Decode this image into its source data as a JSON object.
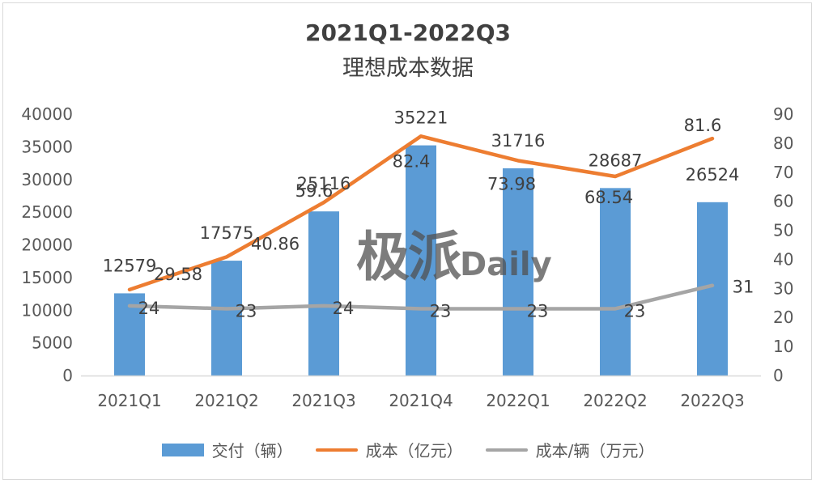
{
  "chart_data": {
    "type": "bar",
    "title": "2021Q1-2022Q3",
    "subtitle": "理想成本数据",
    "categories": [
      "2021Q1",
      "2021Q2",
      "2021Q3",
      "2021Q4",
      "2022Q1",
      "2022Q2",
      "2022Q3"
    ],
    "series": [
      {
        "name": "交付（辆）",
        "type": "bar",
        "axis": "left",
        "color": "#5b9bd5",
        "values": [
          12579,
          17575,
          25116,
          35221,
          31716,
          28687,
          26524
        ]
      },
      {
        "name": "成本（亿元）",
        "type": "line",
        "axis": "right",
        "color": "#ed7d31",
        "values": [
          29.58,
          40.86,
          59.6,
          82.4,
          73.98,
          68.54,
          81.6
        ]
      },
      {
        "name": "成本/辆（万元）",
        "type": "line",
        "axis": "right",
        "color": "#a5a5a5",
        "values": [
          24,
          23,
          24,
          23,
          23,
          23,
          31
        ]
      }
    ],
    "y_left": {
      "min": 0,
      "max": 40000,
      "step": 5000,
      "ticks": [
        "0",
        "5000",
        "10000",
        "15000",
        "20000",
        "25000",
        "30000",
        "35000",
        "40000"
      ]
    },
    "y_right": {
      "min": 0,
      "max": 90,
      "step": 10,
      "ticks": [
        "0",
        "10",
        "20",
        "30",
        "40",
        "50",
        "60",
        "70",
        "80",
        "90"
      ]
    },
    "data_labels": {
      "bars": [
        "12579",
        "17575",
        "25116",
        "35221",
        "31716",
        "28687",
        "26524"
      ],
      "cost": [
        "29.58",
        "40.86",
        "59.6",
        "82.4",
        "73.98",
        "68.54",
        "81.6"
      ],
      "unit_cost": [
        "24",
        "23",
        "24",
        "23",
        "23",
        "23",
        "31"
      ]
    },
    "grid": false,
    "legend_position": "bottom"
  },
  "watermark": {
    "cn": "极派",
    "en": "Daily"
  }
}
